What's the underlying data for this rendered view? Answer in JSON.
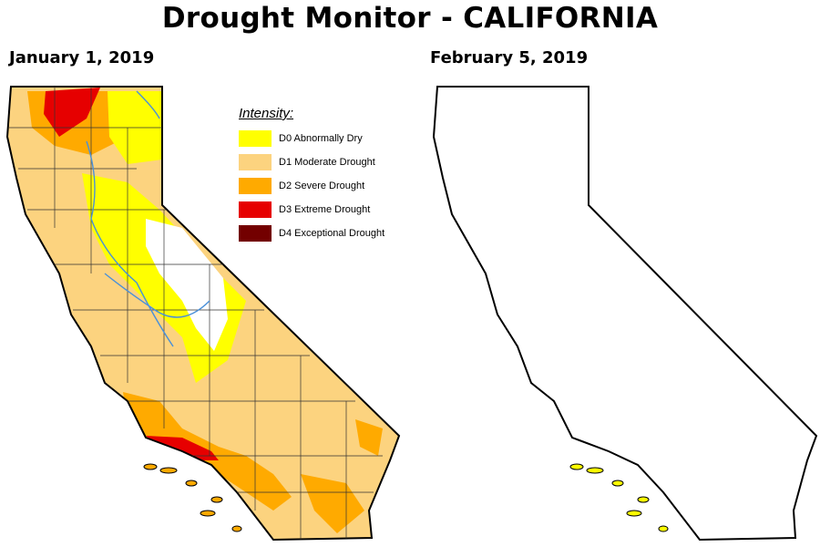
{
  "title": "Drought Monitor - CALIFORNIA",
  "maps": [
    {
      "date": "January 1, 2019"
    },
    {
      "date": "February 5, 2019"
    }
  ],
  "legend": {
    "title": "Intensity:",
    "items": [
      {
        "label": "D0 Abnormally Dry",
        "color": "#ffff00"
      },
      {
        "label": "D1 Moderate Drought",
        "color": "#fcd37f"
      },
      {
        "label": "D2 Severe Drought",
        "color": "#ffaa00"
      },
      {
        "label": "D3 Extreme Drought",
        "color": "#e60000"
      },
      {
        "label": "D4 Exceptional Drought",
        "color": "#730000"
      }
    ]
  },
  "colors": {
    "none": "#ffffff",
    "border": "#000000",
    "county_lines": "#333333",
    "rivers": "#4a90d9"
  }
}
